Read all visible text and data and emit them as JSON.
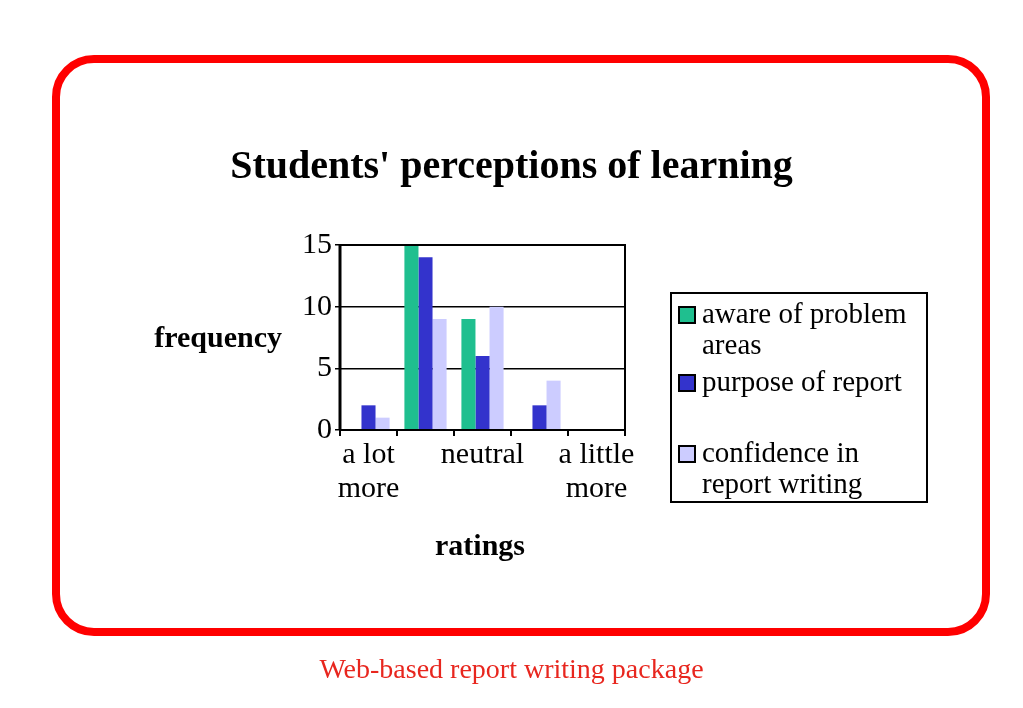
{
  "chart_data": {
    "type": "bar",
    "title": "Students' perceptions of learning",
    "xlabel": "ratings",
    "ylabel": "frequency",
    "categories": [
      "a lot more",
      null,
      "neutral",
      null,
      "a little more"
    ],
    "series": [
      {
        "name": "aware of problem areas",
        "color": "#1fbf8f",
        "values": [
          0,
          15,
          9,
          0,
          0
        ]
      },
      {
        "name": "purpose of report",
        "color": "#3333cc",
        "values": [
          2,
          14,
          6,
          2,
          0
        ]
      },
      {
        "name": "confidence in report writing",
        "color": "#ccccff",
        "values": [
          1,
          9,
          10,
          4,
          0
        ]
      }
    ],
    "ylim": [
      0,
      15
    ],
    "yticks": [
      0,
      5,
      10,
      15
    ],
    "grid": "y",
    "legend": "right",
    "annotations": [
      "Web-based report writing package"
    ]
  }
}
